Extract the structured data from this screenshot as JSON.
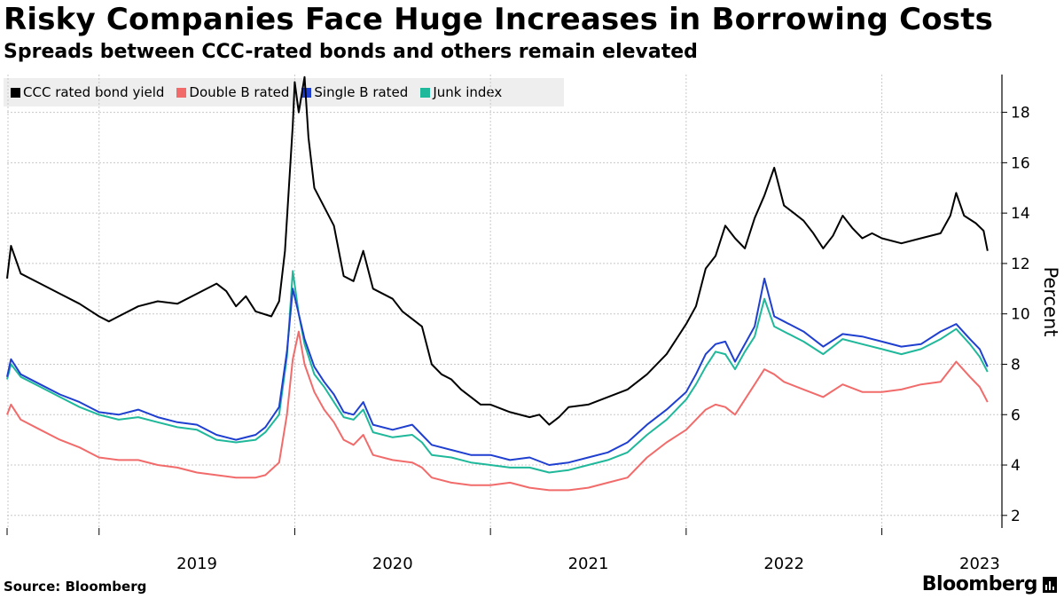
{
  "header": {
    "title": "Risky Companies Face Huge Increases in Borrowing Costs",
    "subtitle": "Spreads between CCC-rated bonds and others remain elevated"
  },
  "footer": {
    "source": "Source: Bloomberg",
    "brand": "Bloomberg"
  },
  "colors": {
    "ccc": "#000000",
    "double_b": "#f26b6b",
    "single_b": "#1f3fd0",
    "junk": "#1fb89a",
    "grid": "#c8c8c8",
    "legend_bg": "#eeeeee"
  },
  "chart_data": {
    "type": "line",
    "title": "Risky Companies Face Huge Increases in Borrowing Costs",
    "subtitle": "Spreads between CCC-rated bonds and others remain elevated",
    "xlabel": "",
    "ylabel": "Percent",
    "y_axis_side": "right",
    "ylim": [
      1.5,
      19.5
    ],
    "yticks": [
      2,
      4,
      6,
      8,
      10,
      12,
      14,
      16,
      18
    ],
    "xlim": [
      2018.53,
      2023.6
    ],
    "xtick_labels": [
      "2019",
      "2020",
      "2021",
      "2022",
      "2023"
    ],
    "x_year_boundaries": [
      2019,
      2020,
      2021,
      2022,
      2023
    ],
    "grid": true,
    "legend_position": "top-left",
    "series": [
      {
        "name": "CCC rated bond yield",
        "color": "#000000",
        "points": [
          [
            2018.53,
            11.4
          ],
          [
            2018.55,
            12.7
          ],
          [
            2018.6,
            11.6
          ],
          [
            2018.7,
            11.2
          ],
          [
            2018.8,
            10.8
          ],
          [
            2018.9,
            10.4
          ],
          [
            2019.0,
            9.9
          ],
          [
            2019.05,
            9.7
          ],
          [
            2019.1,
            9.9
          ],
          [
            2019.2,
            10.3
          ],
          [
            2019.3,
            10.5
          ],
          [
            2019.4,
            10.4
          ],
          [
            2019.5,
            10.8
          ],
          [
            2019.6,
            11.2
          ],
          [
            2019.65,
            10.9
          ],
          [
            2019.7,
            10.3
          ],
          [
            2019.75,
            10.7
          ],
          [
            2019.8,
            10.1
          ],
          [
            2019.88,
            9.9
          ],
          [
            2019.92,
            10.5
          ],
          [
            2019.95,
            12.5
          ],
          [
            2019.97,
            15
          ],
          [
            2019.99,
            17.5
          ],
          [
            2020.0,
            19.2
          ],
          [
            2020.02,
            18.0
          ],
          [
            2020.05,
            19.4
          ],
          [
            2020.07,
            17.0
          ],
          [
            2020.1,
            15.0
          ],
          [
            2020.2,
            13.5
          ],
          [
            2020.25,
            11.5
          ],
          [
            2020.3,
            11.3
          ],
          [
            2020.35,
            12.5
          ],
          [
            2020.4,
            11.0
          ],
          [
            2020.5,
            10.6
          ],
          [
            2020.55,
            10.1
          ],
          [
            2020.6,
            9.8
          ],
          [
            2020.65,
            9.5
          ],
          [
            2020.7,
            8.0
          ],
          [
            2020.75,
            7.6
          ],
          [
            2020.8,
            7.4
          ],
          [
            2020.85,
            7.0
          ],
          [
            2020.9,
            6.7
          ],
          [
            2020.95,
            6.4
          ],
          [
            2021.0,
            6.4
          ],
          [
            2021.1,
            6.1
          ],
          [
            2021.2,
            5.9
          ],
          [
            2021.25,
            6.0
          ],
          [
            2021.3,
            5.6
          ],
          [
            2021.35,
            5.9
          ],
          [
            2021.4,
            6.3
          ],
          [
            2021.5,
            6.4
          ],
          [
            2021.6,
            6.7
          ],
          [
            2021.7,
            7.0
          ],
          [
            2021.8,
            7.6
          ],
          [
            2021.9,
            8.4
          ],
          [
            2022.0,
            9.6
          ],
          [
            2022.05,
            10.3
          ],
          [
            2022.1,
            11.8
          ],
          [
            2022.15,
            12.3
          ],
          [
            2022.2,
            13.5
          ],
          [
            2022.25,
            13.0
          ],
          [
            2022.3,
            12.6
          ],
          [
            2022.35,
            13.8
          ],
          [
            2022.4,
            14.7
          ],
          [
            2022.45,
            15.8
          ],
          [
            2022.5,
            14.3
          ],
          [
            2022.55,
            14.0
          ],
          [
            2022.6,
            13.7
          ],
          [
            2022.65,
            13.2
          ],
          [
            2022.7,
            12.6
          ],
          [
            2022.75,
            13.1
          ],
          [
            2022.8,
            13.9
          ],
          [
            2022.85,
            13.4
          ],
          [
            2022.9,
            13.0
          ],
          [
            2022.95,
            13.2
          ],
          [
            2023.0,
            13.0
          ],
          [
            2023.1,
            12.8
          ],
          [
            2023.2,
            13.0
          ],
          [
            2023.3,
            13.2
          ],
          [
            2023.35,
            13.9
          ],
          [
            2023.38,
            14.8
          ],
          [
            2023.42,
            13.9
          ],
          [
            2023.48,
            13.6
          ],
          [
            2023.52,
            13.3
          ],
          [
            2023.54,
            12.5
          ]
        ]
      },
      {
        "name": "Double B rated",
        "color": "#f26b6b",
        "points": [
          [
            2018.53,
            6.0
          ],
          [
            2018.55,
            6.4
          ],
          [
            2018.6,
            5.8
          ],
          [
            2018.7,
            5.4
          ],
          [
            2018.8,
            5.0
          ],
          [
            2018.9,
            4.7
          ],
          [
            2019.0,
            4.3
          ],
          [
            2019.1,
            4.2
          ],
          [
            2019.2,
            4.2
          ],
          [
            2019.3,
            4.0
          ],
          [
            2019.4,
            3.9
          ],
          [
            2019.5,
            3.7
          ],
          [
            2019.6,
            3.6
          ],
          [
            2019.7,
            3.5
          ],
          [
            2019.8,
            3.5
          ],
          [
            2019.85,
            3.6
          ],
          [
            2019.92,
            4.1
          ],
          [
            2019.96,
            6.0
          ],
          [
            2019.99,
            8.2
          ],
          [
            2020.02,
            9.3
          ],
          [
            2020.05,
            8.0
          ],
          [
            2020.1,
            6.9
          ],
          [
            2020.15,
            6.2
          ],
          [
            2020.2,
            5.7
          ],
          [
            2020.25,
            5.0
          ],
          [
            2020.3,
            4.8
          ],
          [
            2020.35,
            5.2
          ],
          [
            2020.4,
            4.4
          ],
          [
            2020.5,
            4.2
          ],
          [
            2020.6,
            4.1
          ],
          [
            2020.65,
            3.9
          ],
          [
            2020.7,
            3.5
          ],
          [
            2020.8,
            3.3
          ],
          [
            2020.9,
            3.2
          ],
          [
            2021.0,
            3.2
          ],
          [
            2021.1,
            3.3
          ],
          [
            2021.2,
            3.1
          ],
          [
            2021.3,
            3.0
          ],
          [
            2021.4,
            3.0
          ],
          [
            2021.5,
            3.1
          ],
          [
            2021.6,
            3.3
          ],
          [
            2021.7,
            3.5
          ],
          [
            2021.8,
            4.3
          ],
          [
            2021.9,
            4.9
          ],
          [
            2022.0,
            5.4
          ],
          [
            2022.05,
            5.8
          ],
          [
            2022.1,
            6.2
          ],
          [
            2022.15,
            6.4
          ],
          [
            2022.2,
            6.3
          ],
          [
            2022.25,
            6.0
          ],
          [
            2022.3,
            6.6
          ],
          [
            2022.35,
            7.2
          ],
          [
            2022.4,
            7.8
          ],
          [
            2022.45,
            7.6
          ],
          [
            2022.5,
            7.3
          ],
          [
            2022.6,
            7.0
          ],
          [
            2022.7,
            6.7
          ],
          [
            2022.8,
            7.2
          ],
          [
            2022.9,
            6.9
          ],
          [
            2023.0,
            6.9
          ],
          [
            2023.1,
            7.0
          ],
          [
            2023.2,
            7.2
          ],
          [
            2023.3,
            7.3
          ],
          [
            2023.38,
            8.1
          ],
          [
            2023.45,
            7.5
          ],
          [
            2023.5,
            7.1
          ],
          [
            2023.54,
            6.5
          ]
        ]
      },
      {
        "name": "Single B rated",
        "color": "#1f3fd0",
        "points": [
          [
            2018.53,
            7.5
          ],
          [
            2018.55,
            8.2
          ],
          [
            2018.6,
            7.6
          ],
          [
            2018.7,
            7.2
          ],
          [
            2018.8,
            6.8
          ],
          [
            2018.9,
            6.5
          ],
          [
            2019.0,
            6.1
          ],
          [
            2019.1,
            6.0
          ],
          [
            2019.2,
            6.2
          ],
          [
            2019.3,
            5.9
          ],
          [
            2019.4,
            5.7
          ],
          [
            2019.5,
            5.6
          ],
          [
            2019.6,
            5.2
          ],
          [
            2019.7,
            5.0
          ],
          [
            2019.8,
            5.2
          ],
          [
            2019.85,
            5.5
          ],
          [
            2019.92,
            6.3
          ],
          [
            2019.96,
            8.5
          ],
          [
            2019.99,
            11.0
          ],
          [
            2020.02,
            10.0
          ],
          [
            2020.05,
            9.0
          ],
          [
            2020.1,
            7.9
          ],
          [
            2020.15,
            7.3
          ],
          [
            2020.2,
            6.8
          ],
          [
            2020.25,
            6.1
          ],
          [
            2020.3,
            6.0
          ],
          [
            2020.35,
            6.5
          ],
          [
            2020.4,
            5.6
          ],
          [
            2020.5,
            5.4
          ],
          [
            2020.6,
            5.6
          ],
          [
            2020.65,
            5.2
          ],
          [
            2020.7,
            4.8
          ],
          [
            2020.8,
            4.6
          ],
          [
            2020.9,
            4.4
          ],
          [
            2021.0,
            4.4
          ],
          [
            2021.1,
            4.2
          ],
          [
            2021.2,
            4.3
          ],
          [
            2021.3,
            4.0
          ],
          [
            2021.4,
            4.1
          ],
          [
            2021.5,
            4.3
          ],
          [
            2021.6,
            4.5
          ],
          [
            2021.7,
            4.9
          ],
          [
            2021.8,
            5.6
          ],
          [
            2021.9,
            6.2
          ],
          [
            2022.0,
            6.9
          ],
          [
            2022.05,
            7.6
          ],
          [
            2022.1,
            8.4
          ],
          [
            2022.15,
            8.8
          ],
          [
            2022.2,
            8.9
          ],
          [
            2022.25,
            8.1
          ],
          [
            2022.3,
            8.8
          ],
          [
            2022.35,
            9.5
          ],
          [
            2022.4,
            11.4
          ],
          [
            2022.45,
            9.9
          ],
          [
            2022.5,
            9.7
          ],
          [
            2022.6,
            9.3
          ],
          [
            2022.7,
            8.7
          ],
          [
            2022.8,
            9.2
          ],
          [
            2022.9,
            9.1
          ],
          [
            2023.0,
            8.9
          ],
          [
            2023.1,
            8.7
          ],
          [
            2023.2,
            8.8
          ],
          [
            2023.3,
            9.3
          ],
          [
            2023.38,
            9.6
          ],
          [
            2023.45,
            9.0
          ],
          [
            2023.5,
            8.6
          ],
          [
            2023.54,
            7.9
          ]
        ]
      },
      {
        "name": "Junk index",
        "color": "#1fb89a",
        "points": [
          [
            2018.53,
            7.4
          ],
          [
            2018.55,
            8.0
          ],
          [
            2018.6,
            7.5
          ],
          [
            2018.7,
            7.1
          ],
          [
            2018.8,
            6.7
          ],
          [
            2018.9,
            6.3
          ],
          [
            2019.0,
            6.0
          ],
          [
            2019.1,
            5.8
          ],
          [
            2019.2,
            5.9
          ],
          [
            2019.3,
            5.7
          ],
          [
            2019.4,
            5.5
          ],
          [
            2019.5,
            5.4
          ],
          [
            2019.6,
            5.0
          ],
          [
            2019.7,
            4.9
          ],
          [
            2019.8,
            5.0
          ],
          [
            2019.85,
            5.3
          ],
          [
            2019.92,
            6.0
          ],
          [
            2019.96,
            8.3
          ],
          [
            2019.99,
            11.7
          ],
          [
            2020.02,
            10.0
          ],
          [
            2020.05,
            8.8
          ],
          [
            2020.1,
            7.6
          ],
          [
            2020.15,
            7.1
          ],
          [
            2020.2,
            6.5
          ],
          [
            2020.25,
            5.9
          ],
          [
            2020.3,
            5.8
          ],
          [
            2020.35,
            6.2
          ],
          [
            2020.4,
            5.3
          ],
          [
            2020.5,
            5.1
          ],
          [
            2020.6,
            5.2
          ],
          [
            2020.65,
            4.9
          ],
          [
            2020.7,
            4.4
          ],
          [
            2020.8,
            4.3
          ],
          [
            2020.9,
            4.1
          ],
          [
            2021.0,
            4.0
          ],
          [
            2021.1,
            3.9
          ],
          [
            2021.2,
            3.9
          ],
          [
            2021.3,
            3.7
          ],
          [
            2021.4,
            3.8
          ],
          [
            2021.5,
            4.0
          ],
          [
            2021.6,
            4.2
          ],
          [
            2021.7,
            4.5
          ],
          [
            2021.8,
            5.2
          ],
          [
            2021.9,
            5.8
          ],
          [
            2022.0,
            6.6
          ],
          [
            2022.05,
            7.2
          ],
          [
            2022.1,
            7.9
          ],
          [
            2022.15,
            8.5
          ],
          [
            2022.2,
            8.4
          ],
          [
            2022.25,
            7.8
          ],
          [
            2022.3,
            8.5
          ],
          [
            2022.35,
            9.1
          ],
          [
            2022.4,
            10.6
          ],
          [
            2022.45,
            9.5
          ],
          [
            2022.5,
            9.3
          ],
          [
            2022.6,
            8.9
          ],
          [
            2022.7,
            8.4
          ],
          [
            2022.8,
            9.0
          ],
          [
            2022.9,
            8.8
          ],
          [
            2023.0,
            8.6
          ],
          [
            2023.1,
            8.4
          ],
          [
            2023.2,
            8.6
          ],
          [
            2023.3,
            9.0
          ],
          [
            2023.38,
            9.4
          ],
          [
            2023.45,
            8.8
          ],
          [
            2023.5,
            8.3
          ],
          [
            2023.54,
            7.7
          ]
        ]
      }
    ]
  }
}
